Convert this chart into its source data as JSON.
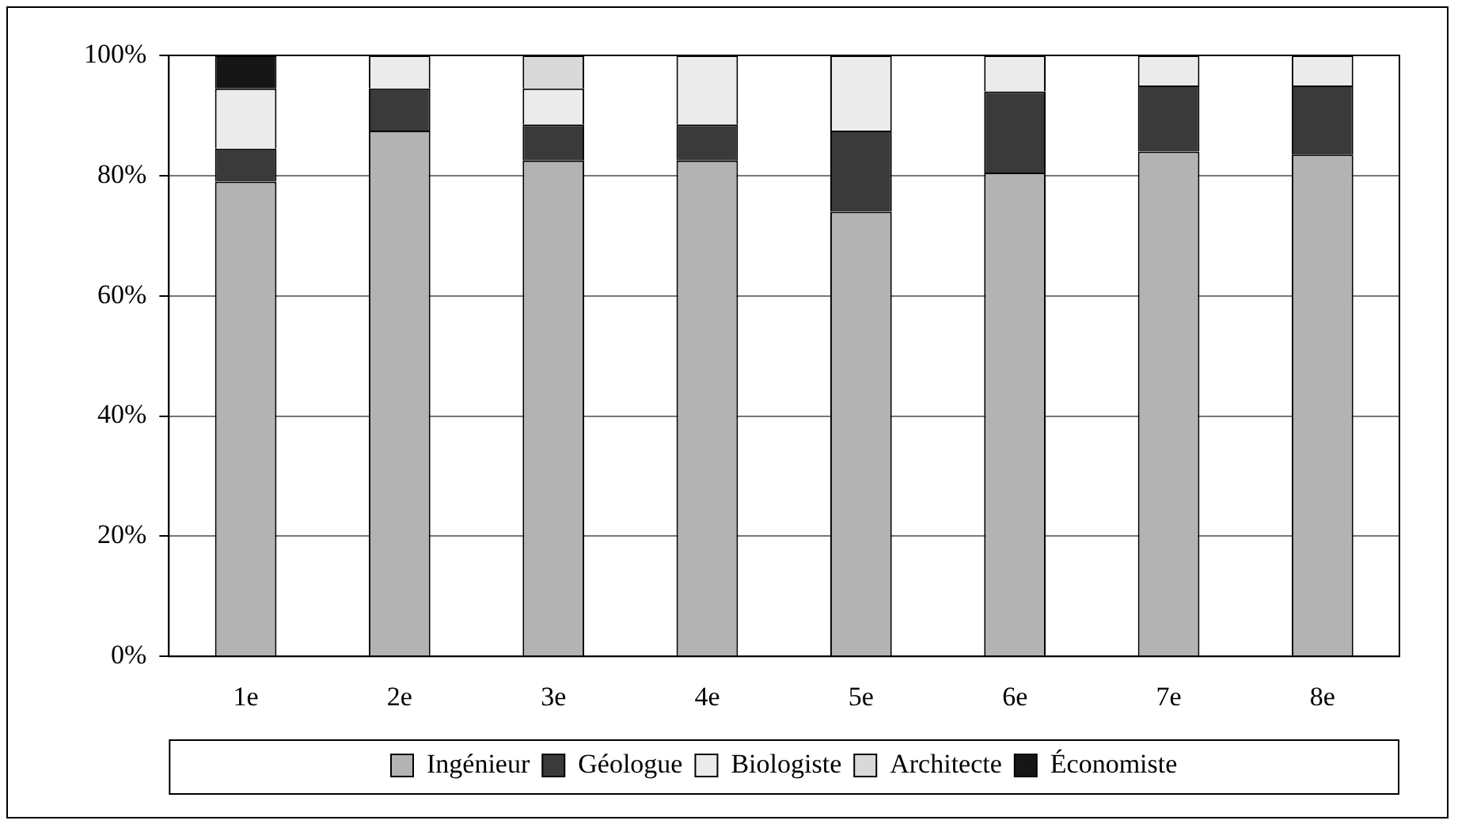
{
  "chart_data": {
    "type": "bar",
    "stacked": true,
    "categories": [
      "1e",
      "2e",
      "3e",
      "4e",
      "5e",
      "6e",
      "7e",
      "8e"
    ],
    "series": [
      {
        "name": "Ingénieur",
        "color": "#b3b3b3",
        "values": [
          79,
          87.5,
          82.5,
          82.5,
          74,
          80.5,
          84,
          83.5
        ]
      },
      {
        "name": "Géologue",
        "color": "#3a3a3a",
        "values": [
          5.5,
          7,
          6,
          6,
          13.5,
          13.5,
          11,
          11.5
        ]
      },
      {
        "name": "Biologiste",
        "color": "#ebebeb",
        "values": [
          10,
          5.5,
          6,
          11.5,
          12.5,
          6,
          5,
          5
        ]
      },
      {
        "name": "Architecte",
        "color": "#d9d9d9",
        "values": [
          0,
          0,
          5.5,
          0,
          0,
          0,
          0,
          0
        ]
      },
      {
        "name": "Économiste",
        "color": "#161616",
        "values": [
          5.5,
          0,
          0,
          0,
          0,
          0,
          0,
          0
        ]
      }
    ],
    "ylim": [
      0,
      100
    ],
    "yticks": [
      {
        "value": 0,
        "label": "0%"
      },
      {
        "value": 20,
        "label": "20%"
      },
      {
        "value": 40,
        "label": "40%"
      },
      {
        "value": 60,
        "label": "60%"
      },
      {
        "value": 80,
        "label": "80%"
      },
      {
        "value": 100,
        "label": "100%"
      }
    ],
    "grid": "y",
    "legend": "bottom"
  }
}
